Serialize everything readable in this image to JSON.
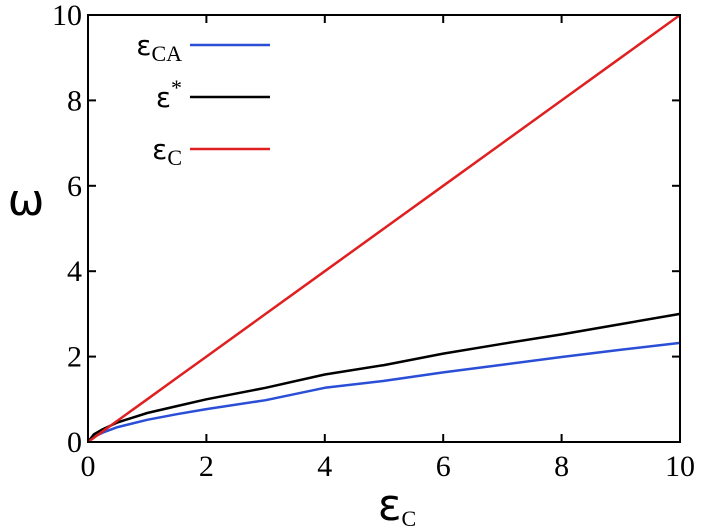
{
  "chart_data": {
    "type": "line",
    "xlabel": "εC",
    "xlabel_parts": {
      "main": "ε",
      "sub": "C"
    },
    "ylabel": "ω",
    "xlim": [
      0,
      10
    ],
    "ylim": [
      0,
      10
    ],
    "xticks": [
      "0",
      "2",
      "4",
      "6",
      "8",
      "10"
    ],
    "yticks": [
      "0",
      "2",
      "4",
      "6",
      "8",
      "10"
    ],
    "grid": false,
    "legend_position": "top-left",
    "x": [
      0,
      0.1,
      0.25,
      0.5,
      1,
      1.5,
      2,
      3,
      4,
      5,
      6,
      7,
      8,
      9,
      10
    ],
    "series": [
      {
        "name": "εCA",
        "name_parts": {
          "main": "ε",
          "sub": "CA",
          "sup": ""
        },
        "color": "#2a4fd6",
        "values": [
          0,
          0.12,
          0.22,
          0.35,
          0.52,
          0.65,
          0.77,
          0.98,
          1.27,
          1.43,
          1.63,
          1.81,
          1.99,
          2.16,
          2.32
        ]
      },
      {
        "name": "ε*",
        "name_parts": {
          "main": "ε",
          "sub": "",
          "sup": "*"
        },
        "color": "#000000",
        "values": [
          0,
          0.18,
          0.3,
          0.46,
          0.68,
          0.84,
          1.0,
          1.27,
          1.58,
          1.8,
          2.07,
          2.3,
          2.52,
          2.76,
          3.0
        ]
      },
      {
        "name": "εC",
        "name_parts": {
          "main": "ε",
          "sub": "C",
          "sup": ""
        },
        "color": "#e02020",
        "values": [
          0,
          0.1,
          0.25,
          0.5,
          1,
          1.5,
          2,
          3,
          4,
          5,
          6,
          7,
          8,
          9,
          10
        ]
      }
    ]
  }
}
